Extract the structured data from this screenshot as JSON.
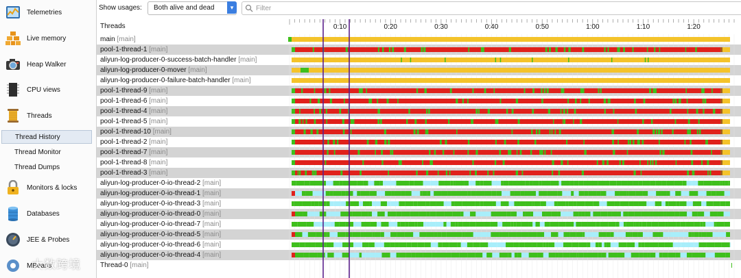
{
  "sidebar": {
    "items": [
      {
        "label": "Telemetries",
        "icon": "telemetries-icon"
      },
      {
        "label": "Live memory",
        "icon": "live-memory-icon"
      },
      {
        "label": "Heap Walker",
        "icon": "camera-icon"
      },
      {
        "label": "CPU views",
        "icon": "cpu-icon"
      },
      {
        "label": "Threads",
        "icon": "threads-spool-icon"
      },
      {
        "label": "Monitors & locks",
        "icon": "lock-icon"
      },
      {
        "label": "Databases",
        "icon": "database-icon"
      },
      {
        "label": "JEE & Probes",
        "icon": "probe-icon"
      },
      {
        "label": "MBeans",
        "icon": "mbeans-icon"
      }
    ],
    "thread_subitems": [
      {
        "label": "Thread History",
        "selected": true
      },
      {
        "label": "Thread Monitor",
        "selected": false
      },
      {
        "label": "Thread Dumps",
        "selected": false
      }
    ]
  },
  "toolbar": {
    "show_usages_label": "Show usages:",
    "usage_select_value": "Both alive and dead",
    "filter_placeholder": "Filter"
  },
  "watermark": "大数跨境",
  "threads_header": "Threads",
  "time_axis": {
    "ticks": [
      "0:10",
      "0:20",
      "0:30",
      "0:40",
      "0:50",
      "1:00",
      "1:10",
      "1:20"
    ],
    "range_seconds": [
      0,
      88
    ]
  },
  "state_colors": {
    "runnable": "#3fbf1c",
    "waiting": "#f4c32a",
    "blocked": "#e0211b",
    "net_io": "#a8eefa",
    "empty": "#d6d6d6"
  },
  "threads": [
    {
      "name": "main",
      "group": "[main]",
      "state": "main"
    },
    {
      "name": "pool-1-thread-1",
      "group": "[main]",
      "state": "pool"
    },
    {
      "name": "aliyun-log-producer-0-success-batch-handler",
      "group": "[main]",
      "state": "handler"
    },
    {
      "name": "aliyun-log-producer-0-mover",
      "group": "[main]",
      "state": "mover"
    },
    {
      "name": "aliyun-log-producer-0-failure-batch-handler",
      "group": "[main]",
      "state": "failure"
    },
    {
      "name": "pool-1-thread-9",
      "group": "[main]",
      "state": "pool"
    },
    {
      "name": "pool-1-thread-6",
      "group": "[main]",
      "state": "pool"
    },
    {
      "name": "pool-1-thread-4",
      "group": "[main]",
      "state": "pool"
    },
    {
      "name": "pool-1-thread-5",
      "group": "[main]",
      "state": "pool"
    },
    {
      "name": "pool-1-thread-10",
      "group": "[main]",
      "state": "pool"
    },
    {
      "name": "pool-1-thread-2",
      "group": "[main]",
      "state": "pool"
    },
    {
      "name": "pool-1-thread-7",
      "group": "[main]",
      "state": "pool"
    },
    {
      "name": "pool-1-thread-8",
      "group": "[main]",
      "state": "pool"
    },
    {
      "name": "pool-1-thread-3",
      "group": "[main]",
      "state": "pool"
    },
    {
      "name": "aliyun-log-producer-0-io-thread-2",
      "group": "[main]",
      "state": "io"
    },
    {
      "name": "aliyun-log-producer-0-io-thread-1",
      "group": "[main]",
      "state": "io"
    },
    {
      "name": "aliyun-log-producer-0-io-thread-3",
      "group": "[main]",
      "state": "io"
    },
    {
      "name": "aliyun-log-producer-0-io-thread-0",
      "group": "[main]",
      "state": "io"
    },
    {
      "name": "aliyun-log-producer-0-io-thread-7",
      "group": "[main]",
      "state": "io"
    },
    {
      "name": "aliyun-log-producer-0-io-thread-5",
      "group": "[main]",
      "state": "io"
    },
    {
      "name": "aliyun-log-producer-0-io-thread-6",
      "group": "[main]",
      "state": "io"
    },
    {
      "name": "aliyun-log-producer-0-io-thread-4",
      "group": "[main]",
      "state": "io"
    },
    {
      "name": "Thread-0",
      "group": "[main]",
      "state": "dead"
    }
  ]
}
